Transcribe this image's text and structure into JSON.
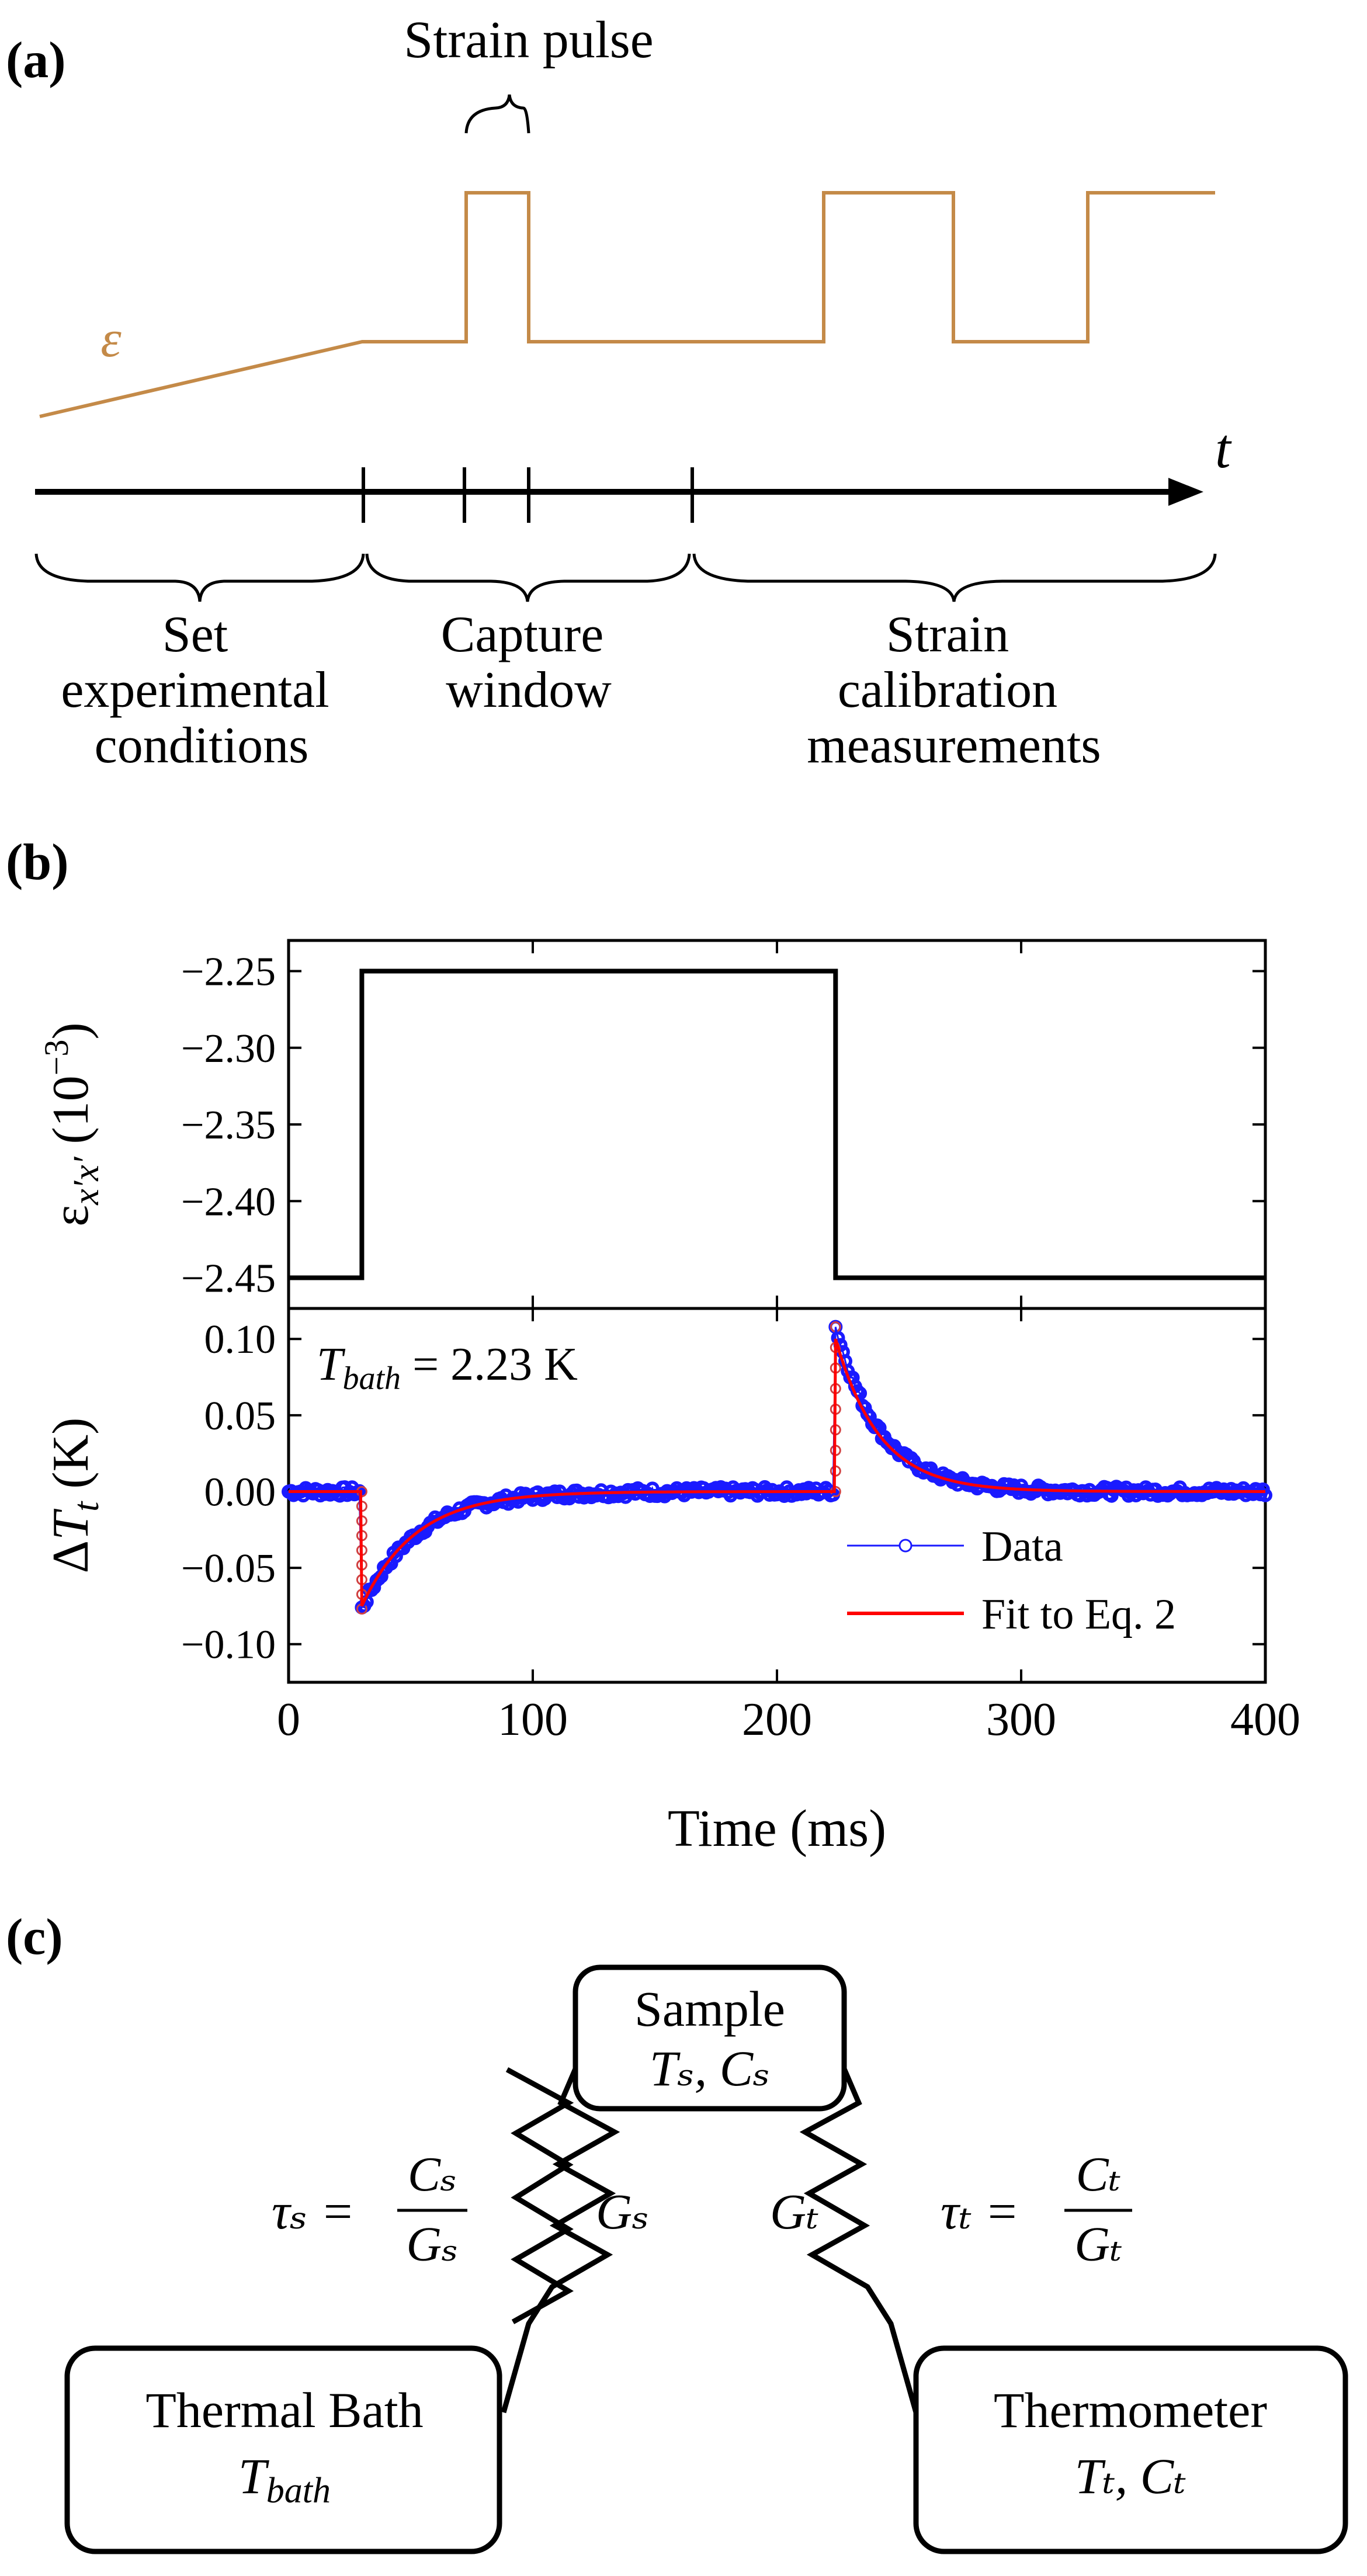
{
  "panel_a": {
    "label": "(a)",
    "pulse_label": "Strain pulse",
    "epsilon_symbol": "ε",
    "t_symbol": "t",
    "phase_1": [
      "Set",
      "experimental",
      "conditions"
    ],
    "phase_2": [
      "Capture",
      "window"
    ],
    "phase_3": [
      "Strain",
      "calibration",
      "measurements"
    ],
    "strain_color": "#c48a48"
  },
  "panel_b": {
    "label": "(b)",
    "annotation_sym": "T",
    "annotation_sub": "bath",
    "annotation_rest": " = 2.23 K",
    "legend_data": "Data",
    "legend_fit": "Fit to Eq. 2",
    "data_color": "#1a1aff",
    "fit_color": "#ff0000"
  },
  "panel_c": {
    "label": "(c)",
    "sample": {
      "title": "Sample",
      "sub": "Tₛ, Cₛ"
    },
    "bath": {
      "title": "Thermal Bath",
      "sub": "T",
      "sub_index": "bath"
    },
    "thermometer": {
      "title": "Thermometer",
      "sub": "Tₜ, Cₜ"
    },
    "tau_s": {
      "lhs": "τₛ =",
      "num": "Cₛ",
      "den": "Gₛ"
    },
    "tau_t": {
      "lhs": "τₜ =",
      "num": "Cₜ",
      "den": "Gₜ"
    },
    "G_s": "Gₛ",
    "G_t": "Gₜ"
  },
  "chart_data": [
    {
      "type": "line",
      "title": "",
      "xlabel": "",
      "ylabel": "εx′x′ (10⁻³)",
      "xlim": [
        0,
        400
      ],
      "ylim": [
        -2.47,
        -2.23
      ],
      "yticks": [
        -2.25,
        -2.3,
        -2.35,
        -2.4,
        -2.45
      ],
      "ytick_labels": [
        "−2.25",
        "−2.30",
        "−2.35",
        "−2.40",
        "−2.45"
      ],
      "series": [
        {
          "name": "strain",
          "x": [
            0,
            30,
            30,
            224,
            224,
            400
          ],
          "values": [
            -2.45,
            -2.45,
            -2.25,
            -2.25,
            -2.45,
            -2.45
          ]
        }
      ]
    },
    {
      "type": "line",
      "title": "",
      "xlabel": "Time (ms)",
      "ylabel": "ΔTt (K)",
      "xlim": [
        0,
        400
      ],
      "ylim": [
        -0.125,
        0.12
      ],
      "xticks": [
        0,
        100,
        200,
        300,
        400
      ],
      "xtick_labels": [
        "0",
        "100",
        "200",
        "300",
        "400"
      ],
      "yticks": [
        0.1,
        0.05,
        0.0,
        -0.05,
        -0.1
      ],
      "ytick_labels": [
        "0.10",
        "0.05",
        "0.00",
        "−0.05",
        "−0.10"
      ],
      "annotation": "Tbath = 2.23 K",
      "series": [
        {
          "name": "Data",
          "model": "step-response",
          "step_down_ms": 30,
          "step_up_ms": 224,
          "peak_down_K": -0.077,
          "peak_up_K": 0.108,
          "tau_down_ms": 22,
          "tau_up_ms": 18
        },
        {
          "name": "Fit to Eq. 2",
          "model": "step-response",
          "step_down_ms": 30,
          "step_up_ms": 224,
          "peak_down_K": -0.075,
          "peak_up_K": 0.1,
          "tau_down_ms": 22,
          "tau_up_ms": 18
        }
      ]
    }
  ]
}
